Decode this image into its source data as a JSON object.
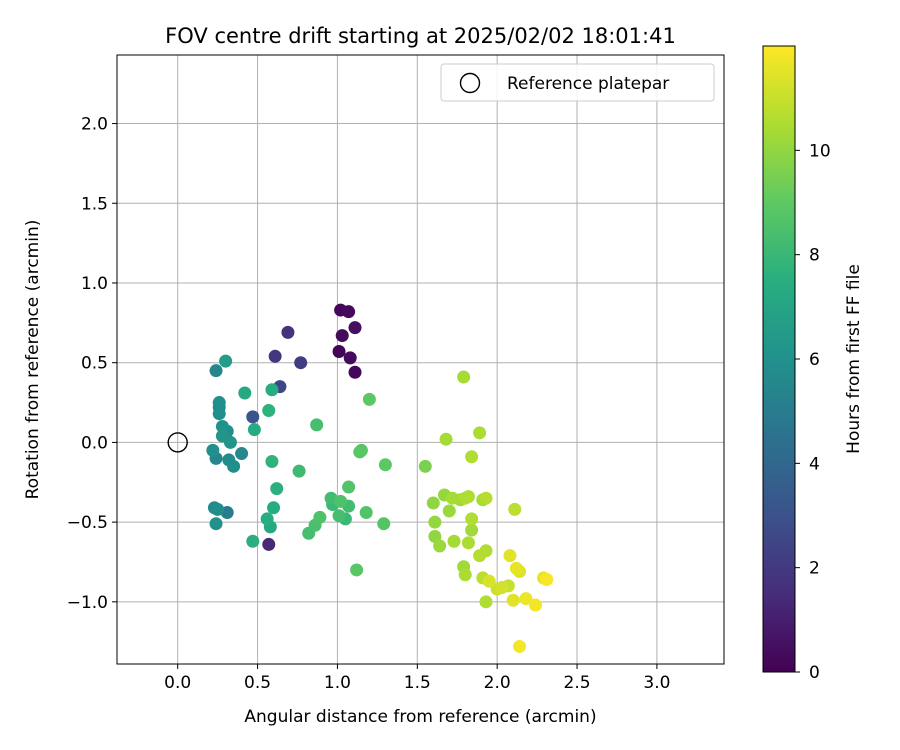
{
  "chart_data": {
    "type": "scatter",
    "title": "FOV centre drift starting at 2025/02/02 18:01:41",
    "xlabel": "Angular distance from reference (arcmin)",
    "ylabel": "Rotation from reference (arcmin)",
    "xlim": [
      -0.38,
      3.42
    ],
    "ylim": [
      -1.39,
      2.43
    ],
    "x_ticks": [
      0.0,
      0.5,
      1.0,
      1.5,
      2.0,
      2.5,
      3.0
    ],
    "x_tick_labels": [
      "0.0",
      "0.5",
      "1.0",
      "1.5",
      "2.0",
      "2.5",
      "3.0"
    ],
    "y_ticks": [
      -1.0,
      -0.5,
      0.0,
      0.5,
      1.0,
      1.5,
      2.0
    ],
    "y_tick_labels": [
      "−1.0",
      "−0.5",
      "0.0",
      "0.5",
      "1.0",
      "1.5",
      "2.0"
    ],
    "grid": true,
    "legend": {
      "position": "top-right",
      "entries": [
        "Reference platepar"
      ]
    },
    "colorbar": {
      "label": "Hours from first FF file",
      "colormap": "viridis",
      "range": [
        0,
        12
      ],
      "ticks": [
        0,
        2,
        4,
        6,
        8,
        10
      ],
      "tick_labels": [
        "0",
        "2",
        "4",
        "6",
        "8",
        "10"
      ]
    },
    "reference_point": {
      "x": 0.0,
      "y": 0.0,
      "label": "Reference platepar"
    },
    "points": [
      {
        "x": 1.02,
        "y": 0.83,
        "hours": 0.2
      },
      {
        "x": 1.07,
        "y": 0.82,
        "hours": 0.3
      },
      {
        "x": 1.11,
        "y": 0.72,
        "hours": 0.5
      },
      {
        "x": 1.03,
        "y": 0.67,
        "hours": 0.4
      },
      {
        "x": 1.01,
        "y": 0.57,
        "hours": 0.1
      },
      {
        "x": 1.08,
        "y": 0.53,
        "hours": 0.3
      },
      {
        "x": 1.11,
        "y": 0.44,
        "hours": 0.2
      },
      {
        "x": 0.69,
        "y": 0.69,
        "hours": 1.8
      },
      {
        "x": 0.61,
        "y": 0.54,
        "hours": 2.0
      },
      {
        "x": 0.77,
        "y": 0.5,
        "hours": 2.2
      },
      {
        "x": 0.64,
        "y": 0.35,
        "hours": 2.6
      },
      {
        "x": 0.47,
        "y": 0.16,
        "hours": 3.2
      },
      {
        "x": 0.57,
        "y": -0.64,
        "hours": 1.4
      },
      {
        "x": 0.24,
        "y": 0.45,
        "hours": 5.5
      },
      {
        "x": 0.3,
        "y": 0.51,
        "hours": 6.6
      },
      {
        "x": 0.26,
        "y": 0.25,
        "hours": 6.0
      },
      {
        "x": 0.26,
        "y": 0.22,
        "hours": 5.8
      },
      {
        "x": 0.26,
        "y": 0.18,
        "hours": 6.0
      },
      {
        "x": 0.28,
        "y": 0.1,
        "hours": 6.1
      },
      {
        "x": 0.31,
        "y": 0.07,
        "hours": 5.9
      },
      {
        "x": 0.28,
        "y": 0.04,
        "hours": 6.3
      },
      {
        "x": 0.33,
        "y": 0.0,
        "hours": 6.2
      },
      {
        "x": 0.22,
        "y": -0.05,
        "hours": 6.0
      },
      {
        "x": 0.24,
        "y": -0.1,
        "hours": 5.5
      },
      {
        "x": 0.32,
        "y": -0.11,
        "hours": 5.8
      },
      {
        "x": 0.35,
        "y": -0.15,
        "hours": 5.9
      },
      {
        "x": 0.4,
        "y": -0.07,
        "hours": 5.6
      },
      {
        "x": 0.23,
        "y": -0.41,
        "hours": 5.7
      },
      {
        "x": 0.25,
        "y": -0.42,
        "hours": 5.9
      },
      {
        "x": 0.31,
        "y": -0.44,
        "hours": 5.1
      },
      {
        "x": 0.24,
        "y": -0.51,
        "hours": 6.1
      },
      {
        "x": 0.42,
        "y": 0.31,
        "hours": 7.3
      },
      {
        "x": 0.59,
        "y": 0.33,
        "hours": 7.5
      },
      {
        "x": 0.57,
        "y": 0.2,
        "hours": 7.7
      },
      {
        "x": 0.48,
        "y": 0.08,
        "hours": 7.4
      },
      {
        "x": 0.59,
        "y": -0.12,
        "hours": 7.8
      },
      {
        "x": 0.62,
        "y": -0.29,
        "hours": 7.6
      },
      {
        "x": 0.6,
        "y": -0.41,
        "hours": 7.4
      },
      {
        "x": 0.56,
        "y": -0.48,
        "hours": 7.5
      },
      {
        "x": 0.58,
        "y": -0.53,
        "hours": 7.3
      },
      {
        "x": 0.47,
        "y": -0.62,
        "hours": 7.6
      },
      {
        "x": 0.87,
        "y": 0.11,
        "hours": 8.4
      },
      {
        "x": 0.76,
        "y": -0.18,
        "hours": 8.2
      },
      {
        "x": 0.89,
        "y": -0.47,
        "hours": 8.6
      },
      {
        "x": 0.86,
        "y": -0.52,
        "hours": 8.5
      },
      {
        "x": 0.82,
        "y": -0.57,
        "hours": 8.4
      },
      {
        "x": 0.96,
        "y": -0.35,
        "hours": 8.3
      },
      {
        "x": 0.97,
        "y": -0.39,
        "hours": 8.1
      },
      {
        "x": 1.02,
        "y": -0.37,
        "hours": 8.6
      },
      {
        "x": 1.07,
        "y": -0.4,
        "hours": 8.3
      },
      {
        "x": 1.01,
        "y": -0.46,
        "hours": 8.4
      },
      {
        "x": 1.05,
        "y": -0.48,
        "hours": 8.1
      },
      {
        "x": 1.07,
        "y": -0.28,
        "hours": 8.7
      },
      {
        "x": 1.14,
        "y": -0.06,
        "hours": 8.9
      },
      {
        "x": 1.15,
        "y": -0.05,
        "hours": 8.8
      },
      {
        "x": 1.2,
        "y": 0.27,
        "hours": 9.0
      },
      {
        "x": 1.18,
        "y": -0.44,
        "hours": 8.7
      },
      {
        "x": 1.3,
        "y": -0.14,
        "hours": 9.0
      },
      {
        "x": 1.29,
        "y": -0.51,
        "hours": 8.8
      },
      {
        "x": 1.12,
        "y": -0.8,
        "hours": 8.9
      },
      {
        "x": 1.55,
        "y": -0.15,
        "hours": 9.6
      },
      {
        "x": 1.68,
        "y": 0.02,
        "hours": 10.4
      },
      {
        "x": 1.79,
        "y": 0.41,
        "hours": 10.4
      },
      {
        "x": 1.84,
        "y": -0.09,
        "hours": 10.6
      },
      {
        "x": 1.89,
        "y": 0.06,
        "hours": 10.5
      },
      {
        "x": 1.6,
        "y": -0.38,
        "hours": 10.0
      },
      {
        "x": 1.67,
        "y": -0.33,
        "hours": 10.1
      },
      {
        "x": 1.72,
        "y": -0.35,
        "hours": 10.4
      },
      {
        "x": 1.77,
        "y": -0.36,
        "hours": 10.3
      },
      {
        "x": 1.8,
        "y": -0.35,
        "hours": 10.6
      },
      {
        "x": 1.82,
        "y": -0.34,
        "hours": 10.5
      },
      {
        "x": 1.7,
        "y": -0.43,
        "hours": 10.2
      },
      {
        "x": 1.91,
        "y": -0.36,
        "hours": 10.4
      },
      {
        "x": 1.93,
        "y": -0.35,
        "hours": 10.7
      },
      {
        "x": 1.84,
        "y": -0.48,
        "hours": 10.6
      },
      {
        "x": 1.84,
        "y": -0.55,
        "hours": 10.3
      },
      {
        "x": 1.61,
        "y": -0.5,
        "hours": 10.1
      },
      {
        "x": 1.61,
        "y": -0.59,
        "hours": 10.0
      },
      {
        "x": 1.64,
        "y": -0.65,
        "hours": 10.2
      },
      {
        "x": 1.73,
        "y": -0.62,
        "hours": 10.4
      },
      {
        "x": 1.82,
        "y": -0.63,
        "hours": 10.5
      },
      {
        "x": 1.93,
        "y": -0.68,
        "hours": 10.6
      },
      {
        "x": 1.89,
        "y": -0.71,
        "hours": 10.7
      },
      {
        "x": 1.79,
        "y": -0.78,
        "hours": 10.3
      },
      {
        "x": 1.8,
        "y": -0.83,
        "hours": 10.5
      },
      {
        "x": 1.91,
        "y": -0.85,
        "hours": 10.8
      },
      {
        "x": 1.93,
        "y": -1.0,
        "hours": 10.6
      },
      {
        "x": 2.11,
        "y": -0.42,
        "hours": 10.8
      },
      {
        "x": 1.95,
        "y": -0.87,
        "hours": 11.3
      },
      {
        "x": 2.0,
        "y": -0.92,
        "hours": 11.1
      },
      {
        "x": 2.03,
        "y": -0.91,
        "hours": 11.2
      },
      {
        "x": 2.07,
        "y": -0.9,
        "hours": 11.0
      },
      {
        "x": 2.08,
        "y": -0.71,
        "hours": 11.5
      },
      {
        "x": 2.12,
        "y": -0.79,
        "hours": 11.6
      },
      {
        "x": 2.14,
        "y": -0.81,
        "hours": 11.4
      },
      {
        "x": 2.1,
        "y": -0.99,
        "hours": 11.5
      },
      {
        "x": 2.18,
        "y": -0.98,
        "hours": 11.7
      },
      {
        "x": 2.24,
        "y": -1.02,
        "hours": 11.8
      },
      {
        "x": 2.29,
        "y": -0.85,
        "hours": 11.6
      },
      {
        "x": 2.31,
        "y": -0.86,
        "hours": 11.9
      },
      {
        "x": 2.14,
        "y": -1.28,
        "hours": 11.8
      }
    ]
  }
}
